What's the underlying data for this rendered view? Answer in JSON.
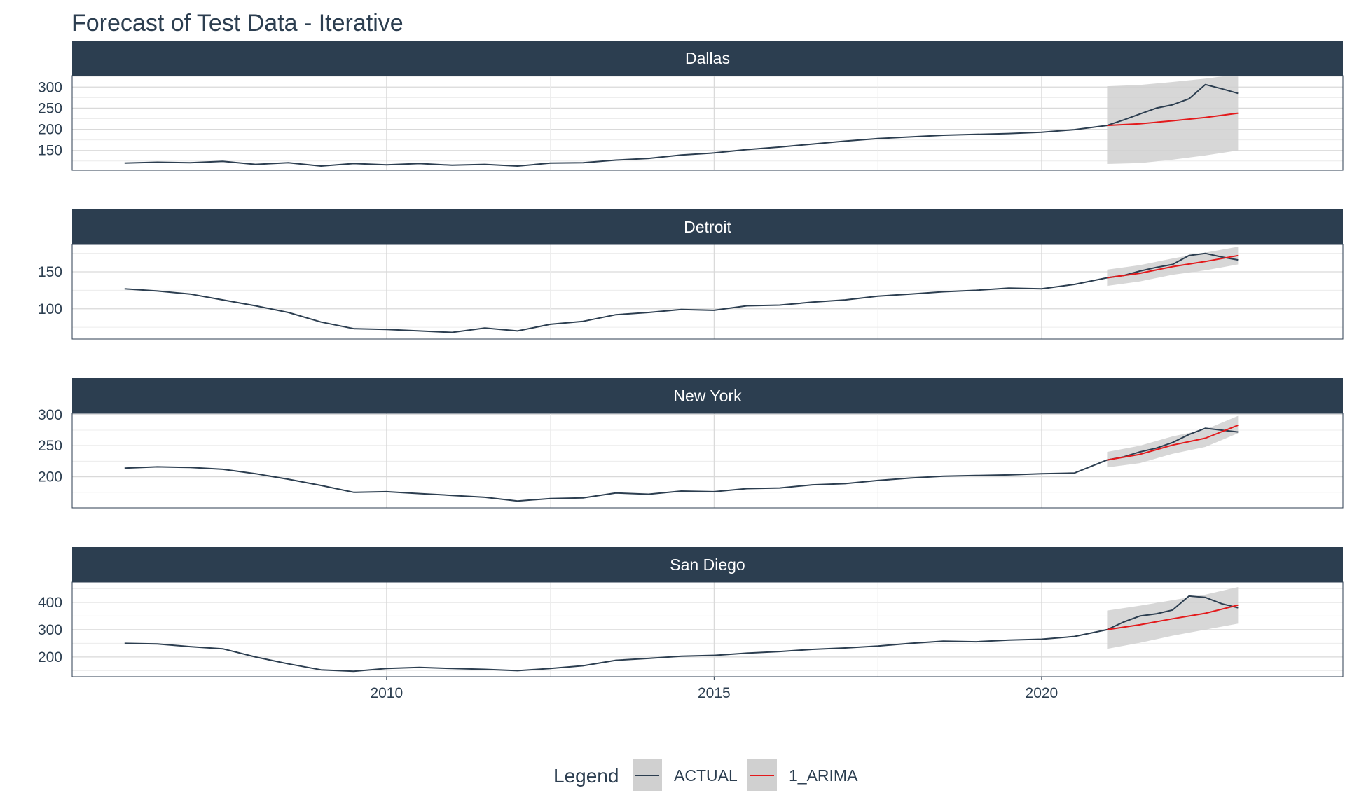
{
  "chart_data": {
    "type": "line",
    "title": "Forecast of Test Data - Iterative",
    "xlabel": "",
    "ylabel": "",
    "x_ticks": [
      2010,
      2015,
      2020
    ],
    "xlim": [
      2005.2,
      2024.6
    ],
    "grid": true,
    "legend": {
      "position": "bottom",
      "title": "Legend",
      "entries": [
        {
          "name": "ACTUAL",
          "color": "#2c3e50"
        },
        {
          "name": "1_ARIMA",
          "color": "#e31a1c"
        }
      ]
    },
    "colors": {
      "strip_bg": "#2c3e50",
      "actual": "#2c3e50",
      "forecast": "#e31a1c",
      "ribbon": "#d0d0d0",
      "grid": "#d9d9d9"
    },
    "panels": [
      {
        "name": "Dallas",
        "y_ticks": [
          150,
          200,
          250,
          300
        ],
        "ylim": [
          103,
          327
        ],
        "actual": [
          [
            2006.0,
            120
          ],
          [
            2006.5,
            122
          ],
          [
            2007.0,
            121
          ],
          [
            2007.5,
            124
          ],
          [
            2008.0,
            117
          ],
          [
            2008.5,
            121
          ],
          [
            2009.0,
            113
          ],
          [
            2009.5,
            119
          ],
          [
            2010.0,
            116
          ],
          [
            2010.5,
            119
          ],
          [
            2011.0,
            115
          ],
          [
            2011.5,
            117
          ],
          [
            2012.0,
            113
          ],
          [
            2012.5,
            120
          ],
          [
            2013.0,
            121
          ],
          [
            2013.5,
            127
          ],
          [
            2014.0,
            131
          ],
          [
            2014.5,
            139
          ],
          [
            2015.0,
            144
          ],
          [
            2015.5,
            152
          ],
          [
            2016.0,
            158
          ],
          [
            2016.5,
            165
          ],
          [
            2017.0,
            172
          ],
          [
            2017.5,
            178
          ],
          [
            2018.0,
            182
          ],
          [
            2018.5,
            186
          ],
          [
            2019.0,
            188
          ],
          [
            2019.5,
            190
          ],
          [
            2020.0,
            193
          ],
          [
            2020.5,
            199
          ],
          [
            2021.0,
            209
          ],
          [
            2021.25,
            222
          ],
          [
            2021.5,
            236
          ],
          [
            2021.75,
            250
          ],
          [
            2022.0,
            258
          ],
          [
            2022.25,
            272
          ],
          [
            2022.5,
            306
          ],
          [
            2022.75,
            296
          ],
          [
            2023.0,
            285
          ]
        ],
        "forecast": [
          [
            2021.0,
            209
          ],
          [
            2021.5,
            213
          ],
          [
            2022.0,
            220
          ],
          [
            2022.5,
            228
          ],
          [
            2023.0,
            238
          ]
        ],
        "ribbon": [
          [
            2021.0,
            118,
            302
          ],
          [
            2021.5,
            120,
            305
          ],
          [
            2022.0,
            128,
            312
          ],
          [
            2022.5,
            138,
            320
          ],
          [
            2023.0,
            150,
            330
          ]
        ]
      },
      {
        "name": "Detroit",
        "y_ticks": [
          100,
          150
        ],
        "ylim": [
          59,
          187
        ],
        "actual": [
          [
            2006.0,
            127
          ],
          [
            2006.5,
            124
          ],
          [
            2007.0,
            120
          ],
          [
            2007.5,
            112
          ],
          [
            2008.0,
            104
          ],
          [
            2008.5,
            95
          ],
          [
            2009.0,
            82
          ],
          [
            2009.5,
            73
          ],
          [
            2010.0,
            72
          ],
          [
            2010.5,
            70
          ],
          [
            2011.0,
            68
          ],
          [
            2011.5,
            74
          ],
          [
            2012.0,
            70
          ],
          [
            2012.5,
            79
          ],
          [
            2013.0,
            83
          ],
          [
            2013.5,
            92
          ],
          [
            2014.0,
            95
          ],
          [
            2014.5,
            99
          ],
          [
            2015.0,
            98
          ],
          [
            2015.5,
            104
          ],
          [
            2016.0,
            105
          ],
          [
            2016.5,
            109
          ],
          [
            2017.0,
            112
          ],
          [
            2017.5,
            117
          ],
          [
            2018.0,
            120
          ],
          [
            2018.5,
            123
          ],
          [
            2019.0,
            125
          ],
          [
            2019.5,
            128
          ],
          [
            2020.0,
            127
          ],
          [
            2020.5,
            133
          ],
          [
            2021.0,
            142
          ],
          [
            2021.25,
            145
          ],
          [
            2021.5,
            151
          ],
          [
            2021.75,
            156
          ],
          [
            2022.0,
            160
          ],
          [
            2022.25,
            172
          ],
          [
            2022.5,
            175
          ],
          [
            2022.75,
            170
          ],
          [
            2023.0,
            166
          ]
        ],
        "forecast": [
          [
            2021.0,
            142
          ],
          [
            2021.5,
            148
          ],
          [
            2022.0,
            157
          ],
          [
            2022.5,
            164
          ],
          [
            2023.0,
            172
          ]
        ],
        "ribbon": [
          [
            2021.0,
            131,
            153
          ],
          [
            2021.5,
            137,
            159
          ],
          [
            2022.0,
            146,
            168
          ],
          [
            2022.5,
            152,
            176
          ],
          [
            2023.0,
            160,
            184
          ]
        ]
      },
      {
        "name": "New York",
        "y_ticks": [
          200,
          250,
          300
        ],
        "ylim": [
          150,
          302
        ],
        "actual": [
          [
            2006.0,
            214
          ],
          [
            2006.5,
            216
          ],
          [
            2007.0,
            215
          ],
          [
            2007.5,
            212
          ],
          [
            2008.0,
            205
          ],
          [
            2008.5,
            196
          ],
          [
            2009.0,
            186
          ],
          [
            2009.5,
            175
          ],
          [
            2010.0,
            176
          ],
          [
            2010.5,
            173
          ],
          [
            2011.0,
            170
          ],
          [
            2011.5,
            167
          ],
          [
            2012.0,
            161
          ],
          [
            2012.5,
            165
          ],
          [
            2013.0,
            166
          ],
          [
            2013.5,
            174
          ],
          [
            2014.0,
            172
          ],
          [
            2014.5,
            177
          ],
          [
            2015.0,
            176
          ],
          [
            2015.5,
            181
          ],
          [
            2016.0,
            182
          ],
          [
            2016.5,
            187
          ],
          [
            2017.0,
            189
          ],
          [
            2017.5,
            194
          ],
          [
            2018.0,
            198
          ],
          [
            2018.5,
            201
          ],
          [
            2019.0,
            202
          ],
          [
            2019.5,
            203
          ],
          [
            2020.0,
            205
          ],
          [
            2020.5,
            206
          ],
          [
            2021.0,
            227
          ],
          [
            2021.25,
            232
          ],
          [
            2021.5,
            240
          ],
          [
            2021.75,
            246
          ],
          [
            2022.0,
            255
          ],
          [
            2022.25,
            268
          ],
          [
            2022.5,
            278
          ],
          [
            2022.75,
            275
          ],
          [
            2023.0,
            272
          ]
        ],
        "forecast": [
          [
            2021.0,
            227
          ],
          [
            2021.5,
            236
          ],
          [
            2022.0,
            251
          ],
          [
            2022.5,
            262
          ],
          [
            2023.0,
            283
          ]
        ],
        "ribbon": [
          [
            2021.0,
            215,
            240
          ],
          [
            2021.5,
            222,
            250
          ],
          [
            2022.0,
            237,
            265
          ],
          [
            2022.5,
            248,
            276
          ],
          [
            2023.0,
            270,
            298
          ]
        ]
      },
      {
        "name": "San Diego",
        "y_ticks": [
          200,
          300,
          400
        ],
        "ylim": [
          128,
          474
        ],
        "actual": [
          [
            2006.0,
            250
          ],
          [
            2006.5,
            248
          ],
          [
            2007.0,
            238
          ],
          [
            2007.5,
            230
          ],
          [
            2008.0,
            200
          ],
          [
            2008.5,
            175
          ],
          [
            2009.0,
            153
          ],
          [
            2009.5,
            148
          ],
          [
            2010.0,
            158
          ],
          [
            2010.5,
            162
          ],
          [
            2011.0,
            158
          ],
          [
            2011.5,
            155
          ],
          [
            2012.0,
            150
          ],
          [
            2012.5,
            158
          ],
          [
            2013.0,
            168
          ],
          [
            2013.5,
            188
          ],
          [
            2014.0,
            195
          ],
          [
            2014.5,
            203
          ],
          [
            2015.0,
            206
          ],
          [
            2015.5,
            214
          ],
          [
            2016.0,
            220
          ],
          [
            2016.5,
            228
          ],
          [
            2017.0,
            233
          ],
          [
            2017.5,
            240
          ],
          [
            2018.0,
            250
          ],
          [
            2018.5,
            258
          ],
          [
            2019.0,
            256
          ],
          [
            2019.5,
            262
          ],
          [
            2020.0,
            265
          ],
          [
            2020.5,
            275
          ],
          [
            2021.0,
            300
          ],
          [
            2021.25,
            328
          ],
          [
            2021.5,
            350
          ],
          [
            2021.75,
            358
          ],
          [
            2022.0,
            372
          ],
          [
            2022.25,
            423
          ],
          [
            2022.5,
            418
          ],
          [
            2022.75,
            395
          ],
          [
            2023.0,
            380
          ]
        ],
        "forecast": [
          [
            2021.0,
            300
          ],
          [
            2021.5,
            318
          ],
          [
            2022.0,
            340
          ],
          [
            2022.5,
            360
          ],
          [
            2023.0,
            390
          ]
        ],
        "ribbon": [
          [
            2021.0,
            230,
            370
          ],
          [
            2021.5,
            252,
            388
          ],
          [
            2022.0,
            278,
            408
          ],
          [
            2022.5,
            300,
            428
          ],
          [
            2023.0,
            322,
            456
          ]
        ]
      }
    ]
  }
}
